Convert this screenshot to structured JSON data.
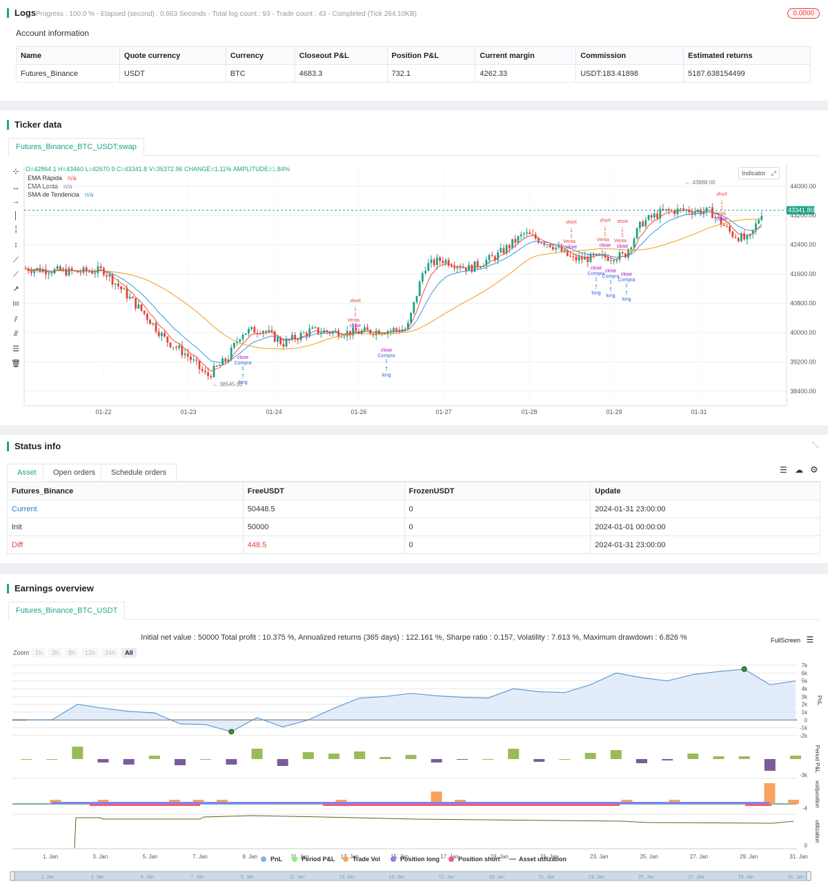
{
  "logs": {
    "title": "Logs",
    "status_line": "Progress : 100.0 % - Elapsed (second) : 0.663  Seconds - Total log count : 93 - Trade count : 43 - Completed (Tick 264.10KB)",
    "badge": "0.0000"
  },
  "account": {
    "title": "Account information",
    "headers": [
      "Name",
      "Quote currency",
      "Currency",
      "Closeout P&L",
      "Position P&L",
      "Current margin",
      "Commission",
      "Estimated returns"
    ],
    "row": [
      "Futures_Binance",
      "USDT",
      "BTC",
      "4683.3",
      "732.1",
      "4262.33",
      "USDT:183.41898",
      "5187.638154499"
    ]
  },
  "ticker": {
    "title": "Ticker data",
    "tab": "Futures_Binance_BTC_USDT:swap",
    "ohlc": "O=42864.1 H=43460 L=42670.9 C=43341.8 V=35372.96 CHANGE=1.11% AMPLITUDE=1.84%",
    "legend": [
      {
        "name": "EMA Rápida",
        "value": "n/a",
        "color": "#e74c3c"
      },
      {
        "name": "EMA Lenta",
        "value": "n/a",
        "color": "#9b59b6"
      },
      {
        "name": "SMA de Tendencia",
        "value": "n/a",
        "color": "#3498db"
      }
    ],
    "indicator_btn": "Indicator",
    "price_tag": "43341.80",
    "high_label": "43888.00",
    "low_label": "38545.00",
    "y_ticks": [
      "44000.00",
      "43200.00",
      "42400.00",
      "41600.00",
      "40800.00",
      "40000.00",
      "39200.00",
      "38400.00"
    ],
    "x_ticks": [
      "01-22",
      "01-23",
      "01-24",
      "01-26",
      "01-27",
      "01-28",
      "01-29",
      "01-31"
    ],
    "annotations": {
      "short": "short",
      "long": "long",
      "venta": "Venta",
      "compra": "Compra",
      "close": "close",
      "one": "1"
    }
  },
  "status": {
    "title": "Status info",
    "tabs": [
      "Asset",
      "Open orders",
      "Schedule orders"
    ],
    "headers": [
      "Futures_Binance",
      "FreeUSDT",
      "FrozenUSDT",
      "Update"
    ],
    "rows": [
      [
        "Current",
        "50448.5",
        "0",
        "2024-01-31 23:00:00"
      ],
      [
        "Init",
        "50000",
        "0",
        "2024-01-01 00:00:00"
      ],
      [
        "Diff",
        "448.5",
        "0",
        "2024-01-31 23:00:00"
      ]
    ]
  },
  "earnings": {
    "title": "Earnings overview",
    "tab": "Futures_Binance_BTC_USDT",
    "summary": "Initial net value : 50000 Total profit : 10.375 %, Annualized returns (365 days) : 122.161 %, Sharpe ratio : 0.157, Volatility : 7.613 %, Maximum drawdown : 6.826 %",
    "fullscreen": "FullScreen",
    "zoom_label": "Zoom",
    "zoom_opts": [
      "1h",
      "3h",
      "8h",
      "12h",
      "24h",
      "All"
    ],
    "pnl_ticks": [
      "7k",
      "6k",
      "5k",
      "4k",
      "3k",
      "2k",
      "1k",
      "0",
      "-1k",
      "-2k"
    ],
    "axis_labels": [
      "PnL",
      "Period P&L",
      "vol/position",
      "utilization"
    ],
    "period_tick": "-3k",
    "vol_tick": "-4",
    "util_tick": "0",
    "x_ticks": [
      "1. Jan",
      "3. Jan",
      "5. Jan",
      "7. Jan",
      "9. Jan",
      "11. Jan",
      "13. Jan",
      "15. Jan",
      "17. Jan",
      "19. Jan",
      "21. Jan",
      "23. Jan",
      "25. Jan",
      "27. Jan",
      "29. Jan",
      "31. Jan"
    ],
    "legend": [
      {
        "name": "PnL",
        "color": "#7cb5ec"
      },
      {
        "name": "Period P&L",
        "color": "#90ed7d"
      },
      {
        "name": "Trade Vol",
        "color": "#f7a35c"
      },
      {
        "name": "Position long",
        "color": "#8085e9"
      },
      {
        "name": "Position short",
        "color": "#f15c80"
      },
      {
        "name": "Asset utilization",
        "color": "#8d7b3b"
      }
    ]
  },
  "chart_data": {
    "type": "line",
    "title": "",
    "x": [
      "1. Jan",
      "2. Jan",
      "3. Jan",
      "4. Jan",
      "5. Jan",
      "6. Jan",
      "7. Jan",
      "8. Jan",
      "9. Jan",
      "10. Jan",
      "11. Jan",
      "12. Jan",
      "13. Jan",
      "14. Jan",
      "15. Jan",
      "16. Jan",
      "17. Jan",
      "18. Jan",
      "19. Jan",
      "20. Jan",
      "21. Jan",
      "22. Jan",
      "23. Jan",
      "24. Jan",
      "25. Jan",
      "26. Jan",
      "27. Jan",
      "28. Jan",
      "29. Jan",
      "30. Jan",
      "31. Jan"
    ],
    "series": [
      {
        "name": "PnL",
        "values": [
          0,
          0,
          2000,
          1500,
          1100,
          900,
          -500,
          -600,
          -1500,
          300,
          -900,
          0,
          1500,
          2800,
          3000,
          3400,
          3100,
          2900,
          2800,
          4000,
          3600,
          3500,
          4500,
          6000,
          5400,
          5000,
          5800,
          6200,
          6500,
          4500,
          5000
        ]
      },
      {
        "name": "Period P&L",
        "values": [
          0,
          0,
          1800,
          -500,
          -800,
          500,
          -900,
          0,
          -800,
          1500,
          -1000,
          1000,
          800,
          1100,
          300,
          600,
          -500,
          -100,
          0,
          1500,
          -400,
          0,
          900,
          1300,
          -600,
          -200,
          800,
          400,
          400,
          -1700,
          500
        ]
      }
    ],
    "ylim": [
      -2000,
      7000
    ]
  }
}
